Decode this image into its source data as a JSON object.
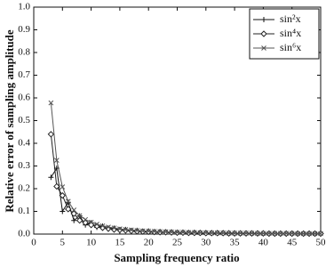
{
  "chart_data": {
    "type": "line",
    "x_label": "Sampling frequency ratio",
    "y_label": "Relative error of sampling amplitude",
    "x": [
      3,
      4,
      5,
      6,
      7,
      8,
      9,
      10,
      11,
      12,
      13,
      14,
      15,
      16,
      17,
      18,
      19,
      20,
      21,
      22,
      23,
      24,
      25,
      26,
      27,
      28,
      29,
      30,
      31,
      32,
      33,
      34,
      35,
      36,
      37,
      38,
      39,
      40,
      41,
      42,
      43,
      44,
      45,
      46,
      47,
      48,
      49,
      50
    ],
    "series": [
      {
        "name": "sin²x",
        "color": "#111111",
        "marker": "plus",
        "values": [
          0.25,
          0.29,
          0.1,
          0.14,
          0.06,
          0.08,
          0.04,
          0.05,
          0.03,
          0.035,
          0.022,
          0.026,
          0.017,
          0.02,
          0.013,
          0.016,
          0.011,
          0.013,
          0.009,
          0.011,
          0.008,
          0.009,
          0.007,
          0.008,
          0.006,
          0.007,
          0.005,
          0.006,
          0.005,
          0.005,
          0.004,
          0.005,
          0.004,
          0.004,
          0.004,
          0.004,
          0.003,
          0.004,
          0.003,
          0.003,
          0.003,
          0.003,
          0.003,
          0.003,
          0.003,
          0.003,
          0.003,
          0.003
        ]
      },
      {
        "name": "sin⁴x",
        "color": "#222222",
        "marker": "diamond",
        "values": [
          0.44,
          0.21,
          0.17,
          0.11,
          0.09,
          0.06,
          0.05,
          0.04,
          0.035,
          0.028,
          0.024,
          0.02,
          0.018,
          0.016,
          0.014,
          0.012,
          0.011,
          0.01,
          0.009,
          0.008,
          0.008,
          0.007,
          0.006,
          0.006,
          0.005,
          0.005,
          0.005,
          0.004,
          0.004,
          0.004,
          0.004,
          0.003,
          0.003,
          0.003,
          0.003,
          0.003,
          0.003,
          0.003,
          0.002,
          0.002,
          0.002,
          0.002,
          0.002,
          0.002,
          0.002,
          0.002,
          0.002,
          0.002
        ]
      },
      {
        "name": "sin⁶x",
        "color": "#555555",
        "marker": "cross",
        "values": [
          0.578,
          0.325,
          0.208,
          0.144,
          0.106,
          0.081,
          0.064,
          0.052,
          0.043,
          0.036,
          0.031,
          0.027,
          0.023,
          0.02,
          0.018,
          0.016,
          0.014,
          0.013,
          0.012,
          0.011,
          0.01,
          0.009,
          0.008,
          0.008,
          0.007,
          0.007,
          0.006,
          0.006,
          0.005,
          0.005,
          0.005,
          0.004,
          0.004,
          0.004,
          0.004,
          0.004,
          0.003,
          0.003,
          0.003,
          0.003,
          0.003,
          0.003,
          0.003,
          0.002,
          0.002,
          0.002,
          0.002,
          0.002
        ]
      }
    ],
    "xlim": [
      0,
      50
    ],
    "xticks": [
      0,
      5,
      10,
      15,
      20,
      25,
      30,
      35,
      40,
      45,
      50
    ],
    "ylim": [
      0,
      1
    ],
    "yticks": [
      {
        "value": 0,
        "label": "0.0"
      },
      0.1,
      0.2,
      0.3,
      0.4,
      0.5,
      0.6,
      0.7,
      0.8,
      0.9,
      {
        "value": 1,
        "label": "1.0"
      }
    ],
    "legend": "upper right",
    "grid": false
  }
}
